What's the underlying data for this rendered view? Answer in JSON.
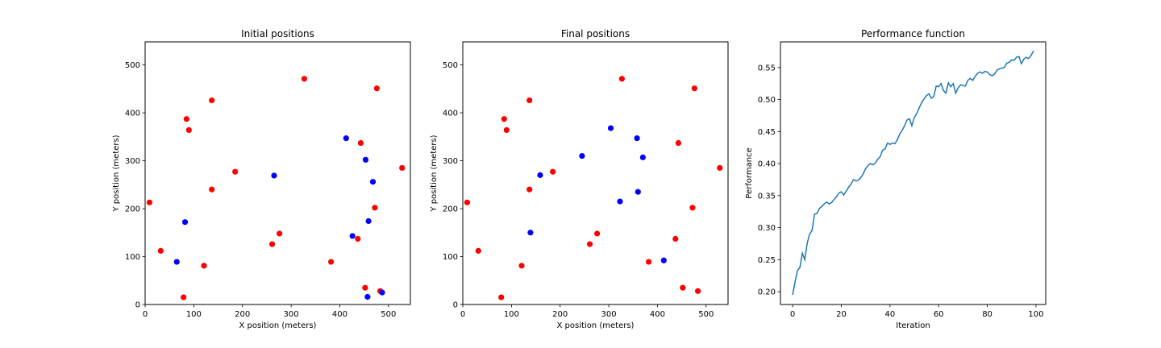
{
  "colors": {
    "red": "#ff0000",
    "blue": "#0000ff",
    "line": "#1f77b4"
  },
  "chart_data": [
    {
      "type": "scatter",
      "title": "Initial positions",
      "xlabel": "X position (meters)",
      "ylabel": "Y position (meters)",
      "xlim": [
        0,
        545
      ],
      "ylim": [
        0,
        548
      ],
      "xticks": [
        0,
        100,
        200,
        300,
        400,
        500
      ],
      "yticks": [
        0,
        100,
        200,
        300,
        400,
        500
      ],
      "grid": false,
      "series": [
        {
          "color": "red",
          "points": [
            [
              9,
              213
            ],
            [
              32,
              112
            ],
            [
              79,
              15
            ],
            [
              85,
              387
            ],
            [
              90,
              364
            ],
            [
              121,
              81
            ],
            [
              137,
              426
            ],
            [
              137,
              240
            ],
            [
              185,
              277
            ],
            [
              261,
              126
            ],
            [
              276,
              148
            ],
            [
              327,
              471
            ],
            [
              382,
              89
            ],
            [
              437,
              137
            ],
            [
              443,
              337
            ],
            [
              452,
              35
            ],
            [
              472,
              202
            ],
            [
              476,
              451
            ],
            [
              483,
              28
            ],
            [
              528,
              285
            ]
          ]
        },
        {
          "color": "blue",
          "points": [
            [
              65,
              89
            ],
            [
              82,
              172
            ],
            [
              265,
              269
            ],
            [
              413,
              347
            ],
            [
              426,
              143
            ],
            [
              453,
              302
            ],
            [
              459,
              174
            ],
            [
              457,
              16
            ],
            [
              468,
              256
            ],
            [
              487,
              25
            ]
          ]
        }
      ]
    },
    {
      "type": "scatter",
      "title": "Final positions",
      "xlabel": "X position (meters)",
      "ylabel": "Y position (meters)",
      "xlim": [
        0,
        545
      ],
      "ylim": [
        0,
        548
      ],
      "xticks": [
        0,
        100,
        200,
        300,
        400,
        500
      ],
      "yticks": [
        0,
        100,
        200,
        300,
        400,
        500
      ],
      "grid": false,
      "series": [
        {
          "color": "red",
          "points": [
            [
              9,
              213
            ],
            [
              32,
              112
            ],
            [
              79,
              15
            ],
            [
              85,
              387
            ],
            [
              90,
              364
            ],
            [
              121,
              81
            ],
            [
              137,
              426
            ],
            [
              137,
              240
            ],
            [
              185,
              277
            ],
            [
              261,
              126
            ],
            [
              276,
              148
            ],
            [
              327,
              471
            ],
            [
              382,
              89
            ],
            [
              437,
              137
            ],
            [
              443,
              337
            ],
            [
              452,
              35
            ],
            [
              472,
              202
            ],
            [
              476,
              451
            ],
            [
              483,
              28
            ],
            [
              528,
              285
            ]
          ]
        },
        {
          "color": "blue",
          "points": [
            [
              139,
              150
            ],
            [
              159,
              270
            ],
            [
              245,
              310
            ],
            [
              304,
              368
            ],
            [
              323,
              215
            ],
            [
              358,
              347
            ],
            [
              360,
              235
            ],
            [
              370,
              307
            ],
            [
              413,
              92
            ]
          ]
        }
      ]
    },
    {
      "type": "line",
      "title": "Performance function",
      "xlabel": "Iteration",
      "ylabel": "Performance",
      "xlim": [
        -5,
        104
      ],
      "ylim": [
        0.18,
        0.59
      ],
      "xticks": [
        0,
        20,
        40,
        60,
        80,
        100
      ],
      "yticks": [
        0.2,
        0.25,
        0.3,
        0.35,
        0.4,
        0.45,
        0.5,
        0.55
      ],
      "grid": false,
      "series": [
        {
          "color": "line",
          "x_start": 0,
          "values": [
            0.195,
            0.215,
            0.233,
            0.238,
            0.26,
            0.25,
            0.276,
            0.29,
            0.296,
            0.321,
            0.322,
            0.33,
            0.333,
            0.337,
            0.34,
            0.337,
            0.339,
            0.344,
            0.348,
            0.354,
            0.356,
            0.351,
            0.357,
            0.363,
            0.368,
            0.375,
            0.373,
            0.374,
            0.378,
            0.384,
            0.392,
            0.397,
            0.4,
            0.398,
            0.401,
            0.407,
            0.411,
            0.421,
            0.423,
            0.432,
            0.43,
            0.432,
            0.431,
            0.437,
            0.446,
            0.452,
            0.459,
            0.468,
            0.47,
            0.459,
            0.472,
            0.478,
            0.487,
            0.495,
            0.501,
            0.506,
            0.509,
            0.502,
            0.505,
            0.521,
            0.52,
            0.525,
            0.514,
            0.51,
            0.526,
            0.52,
            0.525,
            0.51,
            0.518,
            0.523,
            0.522,
            0.521,
            0.53,
            0.533,
            0.53,
            0.536,
            0.541,
            0.543,
            0.541,
            0.544,
            0.543,
            0.539,
            0.537,
            0.54,
            0.546,
            0.548,
            0.549,
            0.55,
            0.557,
            0.558,
            0.562,
            0.561,
            0.566,
            0.567,
            0.556,
            0.563,
            0.566,
            0.564,
            0.569,
            0.576
          ]
        }
      ]
    }
  ]
}
